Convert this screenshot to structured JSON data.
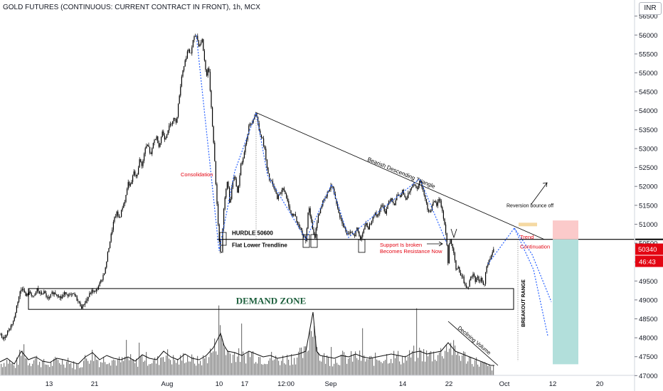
{
  "header": {
    "title": "GOLD FUTURES (CONTINUOUS: CURRENT CONTRACT IN FRONT), 1h, MCX",
    "currency": "INR"
  },
  "price_axis": {
    "last_price_label": "50340",
    "countdown_label": "46:43"
  },
  "annotations": {
    "consolidation": "Consolidation",
    "hurdle": "HURDLE 50600",
    "flat_trendline": "Flat Lower Trendline",
    "bearish_triangle": "Bearish Descending Triangle",
    "support_broken_1": "Support Is broken",
    "support_broken_2": "Becomes Resistance Now",
    "reversion": "Reversion bounce off",
    "trend_1": "Trend",
    "trend_2": "Continuation",
    "demand_zone": "DEMAND ZONE",
    "declining_volume": "Declining Volume",
    "breakout_range": "BREAKOUT RANGE"
  },
  "colors": {
    "candle": "#000000",
    "red_text": "#e30613",
    "projection_line": "#2962ff",
    "target_box": "#b2dfdb",
    "stop_box": "#fbcaca",
    "price_badge": "#e30613",
    "reversion_marker": "#f5d9a3"
  },
  "chart_data": {
    "type": "candlestick",
    "symbol": "GOLD FUTURES (CONTINUOUS: CURRENT CONTRACT IN FRONT)",
    "interval": "1h",
    "exchange": "MCX",
    "x_ticks": [
      "13",
      "21",
      "Aug",
      "10",
      "17",
      "12:00",
      "Sep",
      "14",
      "22",
      "Oct",
      "12",
      "20"
    ],
    "y_ticks": [
      47000,
      47500,
      48000,
      48500,
      49000,
      49500,
      50000,
      50500,
      51000,
      51500,
      52000,
      52500,
      53000,
      53500,
      54000,
      54500,
      55000,
      55500,
      56000,
      56500
    ],
    "y_range": [
      46950,
      56700
    ],
    "last_price": 50340,
    "hurdle_level": 50600,
    "demand_zone": [
      48750,
      49300
    ],
    "price_path": [
      [
        0,
        48100
      ],
      [
        5,
        47950
      ],
      [
        10,
        48150
      ],
      [
        15,
        48300
      ],
      [
        20,
        48500
      ],
      [
        24,
        48900
      ],
      [
        28,
        49200
      ],
      [
        32,
        49350
      ],
      [
        36,
        49100
      ],
      [
        42,
        49200
      ],
      [
        48,
        49050
      ],
      [
        52,
        49300
      ],
      [
        56,
        49150
      ],
      [
        62,
        49200
      ],
      [
        68,
        49000
      ],
      [
        74,
        49200
      ],
      [
        80,
        49150
      ],
      [
        86,
        49050
      ],
      [
        92,
        49200
      ],
      [
        98,
        49100
      ],
      [
        104,
        49150
      ],
      [
        110,
        48950
      ],
      [
        115,
        48800
      ],
      [
        118,
        48900
      ],
      [
        122,
        49000
      ],
      [
        126,
        49150
      ],
      [
        130,
        49250
      ],
      [
        134,
        49200
      ],
      [
        138,
        49350
      ],
      [
        142,
        49500
      ],
      [
        148,
        49800
      ],
      [
        152,
        50300
      ],
      [
        156,
        50700
      ],
      [
        160,
        51100
      ],
      [
        164,
        51300
      ],
      [
        168,
        51150
      ],
      [
        172,
        51450
      ],
      [
        176,
        51650
      ],
      [
        180,
        52100
      ],
      [
        184,
        52000
      ],
      [
        188,
        52400
      ],
      [
        192,
        52200
      ],
      [
        196,
        52700
      ],
      [
        200,
        52550
      ],
      [
        204,
        53000
      ],
      [
        208,
        53100
      ],
      [
        212,
        52800
      ],
      [
        216,
        53200
      ],
      [
        220,
        53300
      ],
      [
        224,
        53050
      ],
      [
        228,
        53450
      ],
      [
        232,
        53250
      ],
      [
        236,
        53500
      ],
      [
        240,
        53650
      ],
      [
        244,
        53800
      ],
      [
        248,
        53700
      ],
      [
        252,
        54400
      ],
      [
        256,
        55000
      ],
      [
        260,
        55300
      ],
      [
        264,
        55600
      ],
      [
        268,
        55500
      ],
      [
        272,
        55900
      ],
      [
        276,
        56000
      ],
      [
        280,
        55700
      ],
      [
        284,
        55900
      ],
      [
        287,
        55400
      ],
      [
        290,
        54900
      ],
      [
        293,
        55200
      ],
      [
        296,
        54400
      ],
      [
        299,
        53500
      ],
      [
        302,
        52600
      ],
      [
        305,
        51500
      ],
      [
        308,
        50600
      ],
      [
        311,
        50100
      ],
      [
        314,
        51300
      ],
      [
        317,
        51800
      ],
      [
        320,
        52200
      ],
      [
        323,
        51500
      ],
      [
        326,
        52000
      ],
      [
        330,
        52300
      ],
      [
        334,
        51800
      ],
      [
        338,
        52500
      ],
      [
        342,
        52800
      ],
      [
        346,
        53200
      ],
      [
        350,
        53600
      ],
      [
        354,
        53700
      ],
      [
        358,
        53900
      ],
      [
        360,
        53950
      ],
      [
        364,
        53500
      ],
      [
        368,
        53300
      ],
      [
        372,
        53000
      ],
      [
        375,
        52500
      ],
      [
        378,
        52200
      ],
      [
        382,
        52100
      ],
      [
        386,
        51900
      ],
      [
        390,
        51700
      ],
      [
        394,
        51800
      ],
      [
        398,
        52000
      ],
      [
        402,
        51700
      ],
      [
        406,
        51500
      ],
      [
        410,
        51200
      ],
      [
        414,
        51300
      ],
      [
        418,
        51000
      ],
      [
        422,
        50900
      ],
      [
        426,
        50700
      ],
      [
        430,
        50600
      ],
      [
        434,
        51500
      ],
      [
        438,
        51000
      ],
      [
        442,
        50600
      ],
      [
        446,
        51100
      ],
      [
        450,
        51400
      ],
      [
        454,
        51600
      ],
      [
        458,
        51700
      ],
      [
        462,
        51900
      ],
      [
        466,
        52050
      ],
      [
        470,
        51800
      ],
      [
        474,
        51500
      ],
      [
        478,
        51200
      ],
      [
        482,
        51000
      ],
      [
        486,
        50800
      ],
      [
        490,
        50700
      ],
      [
        494,
        50800
      ],
      [
        498,
        50700
      ],
      [
        502,
        50900
      ],
      [
        506,
        50600
      ],
      [
        510,
        50800
      ],
      [
        514,
        51000
      ],
      [
        518,
        50900
      ],
      [
        522,
        51100
      ],
      [
        526,
        51300
      ],
      [
        530,
        51200
      ],
      [
        534,
        51400
      ],
      [
        538,
        51500
      ],
      [
        542,
        51300
      ],
      [
        546,
        51600
      ],
      [
        550,
        51700
      ],
      [
        554,
        51500
      ],
      [
        558,
        51800
      ],
      [
        562,
        51700
      ],
      [
        566,
        51900
      ],
      [
        570,
        51600
      ],
      [
        574,
        51800
      ],
      [
        578,
        52000
      ],
      [
        582,
        52100
      ],
      [
        586,
        51900
      ],
      [
        590,
        52200
      ],
      [
        594,
        51900
      ],
      [
        598,
        51700
      ],
      [
        602,
        51300
      ],
      [
        606,
        51400
      ],
      [
        610,
        51600
      ],
      [
        614,
        51500
      ],
      [
        618,
        51700
      ],
      [
        622,
        51300
      ],
      [
        626,
        50900
      ],
      [
        628,
        50500
      ],
      [
        630,
        49900
      ],
      [
        632,
        50700
      ],
      [
        635,
        50400
      ],
      [
        638,
        50200
      ],
      [
        641,
        49800
      ],
      [
        644,
        49900
      ],
      [
        647,
        49600
      ],
      [
        650,
        49700
      ],
      [
        653,
        49400
      ],
      [
        656,
        49250
      ],
      [
        659,
        49400
      ],
      [
        662,
        49600
      ],
      [
        665,
        49700
      ],
      [
        668,
        49500
      ],
      [
        671,
        49650
      ],
      [
        674,
        49450
      ],
      [
        677,
        49600
      ],
      [
        680,
        49300
      ],
      [
        683,
        49800
      ],
      [
        686,
        49950
      ],
      [
        689,
        50100
      ],
      [
        692,
        50250
      ],
      [
        695,
        50340
      ]
    ],
    "volume_path": [
      [
        0,
        15
      ],
      [
        10,
        20
      ],
      [
        20,
        12
      ],
      [
        30,
        30
      ],
      [
        40,
        18
      ],
      [
        50,
        22
      ],
      [
        60,
        16
      ],
      [
        70,
        14
      ],
      [
        80,
        20
      ],
      [
        90,
        18
      ],
      [
        100,
        15
      ],
      [
        110,
        12
      ],
      [
        120,
        22
      ],
      [
        130,
        28
      ],
      [
        140,
        18
      ],
      [
        150,
        24
      ],
      [
        160,
        20
      ],
      [
        170,
        18
      ],
      [
        180,
        22
      ],
      [
        190,
        16
      ],
      [
        200,
        25
      ],
      [
        210,
        20
      ],
      [
        220,
        18
      ],
      [
        230,
        30
      ],
      [
        240,
        22
      ],
      [
        250,
        18
      ],
      [
        260,
        26
      ],
      [
        270,
        20
      ],
      [
        280,
        18
      ],
      [
        290,
        24
      ],
      [
        300,
        35
      ],
      [
        305,
        45
      ],
      [
        310,
        55
      ],
      [
        315,
        38
      ],
      [
        320,
        30
      ],
      [
        330,
        28
      ],
      [
        340,
        24
      ],
      [
        350,
        30
      ],
      [
        360,
        26
      ],
      [
        370,
        22
      ],
      [
        380,
        24
      ],
      [
        390,
        20
      ],
      [
        400,
        22
      ],
      [
        410,
        24
      ],
      [
        420,
        26
      ],
      [
        430,
        30
      ],
      [
        440,
        85
      ],
      [
        445,
        30
      ],
      [
        450,
        24
      ],
      [
        460,
        22
      ],
      [
        470,
        20
      ],
      [
        480,
        24
      ],
      [
        490,
        22
      ],
      [
        500,
        26
      ],
      [
        510,
        22
      ],
      [
        520,
        20
      ],
      [
        530,
        22
      ],
      [
        540,
        24
      ],
      [
        550,
        26
      ],
      [
        560,
        24
      ],
      [
        570,
        22
      ],
      [
        580,
        28
      ],
      [
        590,
        30
      ],
      [
        600,
        26
      ],
      [
        610,
        28
      ],
      [
        620,
        30
      ],
      [
        630,
        42
      ],
      [
        640,
        30
      ],
      [
        650,
        26
      ],
      [
        660,
        22
      ],
      [
        670,
        18
      ],
      [
        680,
        14
      ],
      [
        690,
        10
      ]
    ]
  }
}
